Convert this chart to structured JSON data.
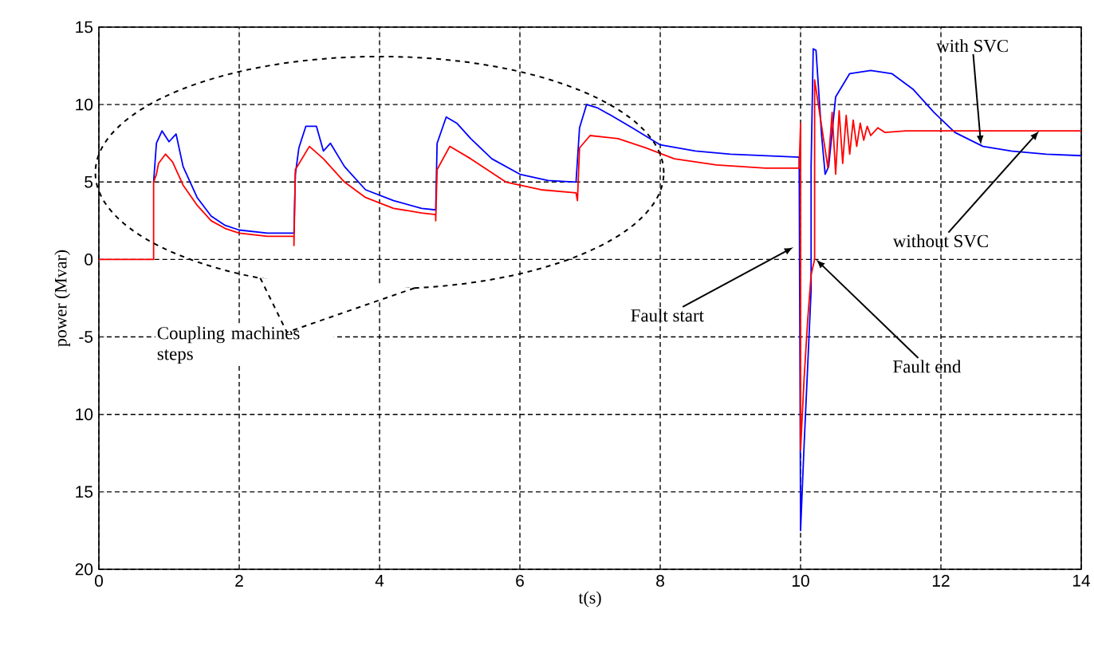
{
  "chart_data": {
    "type": "line",
    "xlabel": "t(s)",
    "ylabel": "power (Mvar)",
    "xlim": [
      0,
      14
    ],
    "ylim": [
      -20,
      15
    ],
    "xticks": [
      0,
      2,
      4,
      6,
      8,
      10,
      12,
      14
    ],
    "yticks": [
      {
        "value": -20,
        "label": "20"
      },
      {
        "value": -15,
        "label": "15"
      },
      {
        "value": -10,
        "label": "10"
      },
      -5,
      0,
      5,
      10,
      15
    ],
    "grid": true,
    "series": [
      {
        "color": "#0000ff",
        "x": [
          0.78,
          0.82,
          0.9,
          1.0,
          1.1,
          1.2,
          1.4,
          1.6,
          1.8,
          2.0,
          2.4,
          2.78,
          2.8,
          2.85,
          2.95,
          3.1,
          3.2,
          3.3,
          3.5,
          3.8,
          4.2,
          4.6,
          4.8,
          4.82,
          4.95,
          5.1,
          5.3,
          5.6,
          6.0,
          6.4,
          6.8,
          6.85,
          6.95,
          7.1,
          7.3,
          7.6,
          8.0,
          8.5,
          9.0,
          9.98,
          10.0,
          10.05,
          10.1,
          10.15,
          10.15,
          10.18,
          10.22,
          10.3,
          10.35,
          10.4,
          10.5,
          10.7,
          11.0,
          11.3,
          11.6,
          11.9,
          12.2,
          12.6,
          13.0,
          13.5,
          14.0
        ],
        "values": [
          5,
          7.5,
          8.3,
          7.6,
          8.1,
          6,
          4,
          2.8,
          2.2,
          1.9,
          1.7,
          1.7,
          5.5,
          7.2,
          8.6,
          8.6,
          7,
          7.5,
          6,
          4.5,
          3.8,
          3.3,
          3.2,
          7.5,
          9.2,
          8.8,
          7.8,
          6.5,
          5.5,
          5.1,
          5.0,
          8.5,
          10.0,
          9.8,
          9.3,
          8.5,
          7.4,
          7.0,
          6.8,
          6.6,
          -17.5,
          -12,
          -7,
          -2,
          6,
          13.6,
          13.5,
          8,
          5.5,
          6,
          10.5,
          12.0,
          12.2,
          12.0,
          11,
          9.5,
          8.2,
          7.3,
          7.0,
          6.8,
          6.7
        ]
      },
      {
        "color": "#ff0000",
        "x": [
          0,
          0.78,
          0.78,
          0.82,
          0.85,
          0.95,
          1.05,
          1.2,
          1.4,
          1.6,
          1.8,
          2.0,
          2.4,
          2.78,
          2.78,
          2.8,
          3.0,
          3.2,
          3.5,
          3.8,
          4.2,
          4.6,
          4.8,
          4.8,
          4.82,
          5.0,
          5.3,
          5.8,
          6.3,
          6.8,
          6.82,
          6.85,
          7.0,
          7.4,
          7.8,
          8.2,
          8.8,
          9.5,
          9.98,
          10.0,
          10.0,
          10.05,
          10.1,
          10.15,
          10.2,
          10.2,
          10.39,
          10.45,
          10.5,
          10.55,
          10.6,
          10.65,
          10.7,
          10.75,
          10.8,
          10.85,
          10.9,
          10.95,
          11.0,
          11.1,
          11.2,
          11.5,
          14.0
        ],
        "values": [
          0,
          0,
          5,
          5.5,
          6.2,
          6.8,
          6.3,
          4.8,
          3.5,
          2.5,
          2.0,
          1.7,
          1.5,
          1.5,
          0.9,
          5.8,
          7.3,
          6.5,
          5,
          4.0,
          3.3,
          3.0,
          2.9,
          2.5,
          5.8,
          7.3,
          6.5,
          5,
          4.5,
          4.3,
          3.8,
          7.2,
          8.0,
          7.8,
          7.2,
          6.5,
          6.1,
          5.9,
          5.9,
          8.8,
          -12.3,
          -7.7,
          -4,
          -1,
          0,
          11.6,
          5.9,
          9.5,
          5.5,
          9.6,
          6.2,
          9.3,
          6.8,
          9.0,
          7.3,
          8.8,
          7.7,
          8.6,
          8.0,
          8.5,
          8.2,
          8.3,
          8.3
        ]
      }
    ],
    "annotations": [
      {
        "text": "with SVC",
        "x": 12.57,
        "y": 7.4
      },
      {
        "text": "without SVC",
        "x": 13.4,
        "y": 8.3
      },
      {
        "text": "Fault start",
        "x": 9.9,
        "y": 0.8
      },
      {
        "text": "Fault end",
        "x": 10.22,
        "y": 0
      },
      "Coupling machines steps"
    ]
  }
}
